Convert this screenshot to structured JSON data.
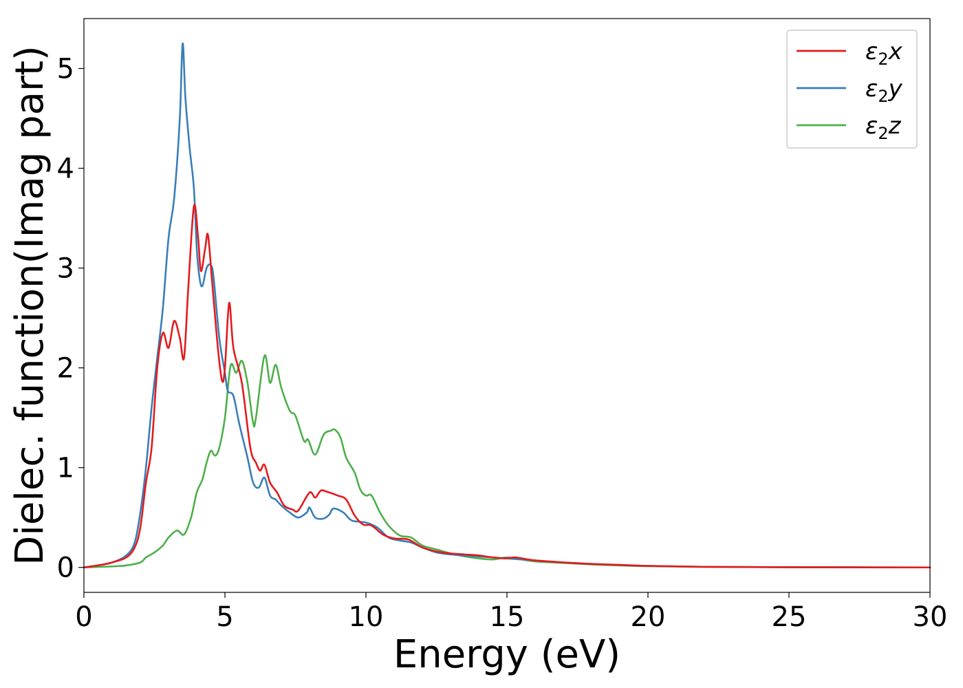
{
  "chart_data": {
    "type": "line",
    "title": "",
    "xlabel": "Energy (eV)",
    "ylabel": "Dielec. function(Imag part)",
    "xlim": [
      0,
      30
    ],
    "ylim": [
      -0.25,
      5.5
    ],
    "xticks": [
      0,
      5,
      10,
      15,
      20,
      25,
      30
    ],
    "yticks": [
      0,
      1,
      2,
      3,
      4,
      5
    ],
    "grid": false,
    "legend_position": "top-right",
    "series": [
      {
        "name": "ε2x",
        "legend_main": "ε",
        "legend_sub": "2",
        "legend_tail": "x",
        "color": "#e41a1c",
        "points": [
          [
            0,
            0
          ],
          [
            0.5,
            0.02
          ],
          [
            1.0,
            0.05
          ],
          [
            1.5,
            0.1
          ],
          [
            1.8,
            0.2
          ],
          [
            2.0,
            0.4
          ],
          [
            2.2,
            0.85
          ],
          [
            2.4,
            1.2
          ],
          [
            2.6,
            2.0
          ],
          [
            2.8,
            2.35
          ],
          [
            3.0,
            2.2
          ],
          [
            3.2,
            2.47
          ],
          [
            3.4,
            2.3
          ],
          [
            3.55,
            2.1
          ],
          [
            3.7,
            2.8
          ],
          [
            3.9,
            3.62
          ],
          [
            4.05,
            3.3
          ],
          [
            4.15,
            2.97
          ],
          [
            4.3,
            3.2
          ],
          [
            4.4,
            3.33
          ],
          [
            4.55,
            2.85
          ],
          [
            4.75,
            2.2
          ],
          [
            4.9,
            1.87
          ],
          [
            5.0,
            2.0
          ],
          [
            5.15,
            2.65
          ],
          [
            5.3,
            2.2
          ],
          [
            5.6,
            1.85
          ],
          [
            5.9,
            1.2
          ],
          [
            6.1,
            1.05
          ],
          [
            6.25,
            0.97
          ],
          [
            6.4,
            1.03
          ],
          [
            6.6,
            0.85
          ],
          [
            6.85,
            0.75
          ],
          [
            7.1,
            0.62
          ],
          [
            7.4,
            0.58
          ],
          [
            7.6,
            0.57
          ],
          [
            8.0,
            0.75
          ],
          [
            8.2,
            0.7
          ],
          [
            8.4,
            0.77
          ],
          [
            8.6,
            0.76
          ],
          [
            9.0,
            0.72
          ],
          [
            9.3,
            0.68
          ],
          [
            9.6,
            0.52
          ],
          [
            9.9,
            0.43
          ],
          [
            10.2,
            0.42
          ],
          [
            10.6,
            0.33
          ],
          [
            11.0,
            0.29
          ],
          [
            11.5,
            0.28
          ],
          [
            12.0,
            0.2
          ],
          [
            12.5,
            0.16
          ],
          [
            13.0,
            0.14
          ],
          [
            13.5,
            0.13
          ],
          [
            14.0,
            0.12
          ],
          [
            14.5,
            0.1
          ],
          [
            15.0,
            0.09
          ],
          [
            15.3,
            0.1
          ],
          [
            16.0,
            0.07
          ],
          [
            17.0,
            0.05
          ],
          [
            18.0,
            0.035
          ],
          [
            19.0,
            0.025
          ],
          [
            20.0,
            0.015
          ],
          [
            22.0,
            0.006
          ],
          [
            25.0,
            0.002
          ],
          [
            30.0,
            0.0
          ]
        ]
      },
      {
        "name": "ε2y",
        "legend_main": "ε",
        "legend_sub": "2",
        "legend_tail": "y",
        "color": "#377eb8",
        "points": [
          [
            0,
            0
          ],
          [
            0.5,
            0.02
          ],
          [
            1.0,
            0.05
          ],
          [
            1.5,
            0.12
          ],
          [
            1.8,
            0.25
          ],
          [
            2.0,
            0.55
          ],
          [
            2.2,
            1.0
          ],
          [
            2.4,
            1.6
          ],
          [
            2.6,
            2.1
          ],
          [
            2.8,
            2.6
          ],
          [
            3.0,
            3.3
          ],
          [
            3.2,
            3.7
          ],
          [
            3.4,
            4.5
          ],
          [
            3.5,
            5.25
          ],
          [
            3.6,
            4.7
          ],
          [
            3.75,
            4.2
          ],
          [
            3.9,
            3.8
          ],
          [
            4.0,
            3.2
          ],
          [
            4.1,
            2.9
          ],
          [
            4.2,
            2.82
          ],
          [
            4.35,
            3.0
          ],
          [
            4.5,
            3.03
          ],
          [
            4.6,
            2.9
          ],
          [
            4.8,
            2.3
          ],
          [
            5.0,
            1.95
          ],
          [
            5.1,
            1.77
          ],
          [
            5.3,
            1.72
          ],
          [
            5.5,
            1.45
          ],
          [
            5.8,
            1.1
          ],
          [
            6.0,
            0.85
          ],
          [
            6.2,
            0.8
          ],
          [
            6.4,
            0.9
          ],
          [
            6.6,
            0.72
          ],
          [
            6.8,
            0.68
          ],
          [
            7.0,
            0.62
          ],
          [
            7.3,
            0.55
          ],
          [
            7.6,
            0.5
          ],
          [
            7.9,
            0.55
          ],
          [
            8.0,
            0.6
          ],
          [
            8.2,
            0.5
          ],
          [
            8.5,
            0.49
          ],
          [
            8.7,
            0.53
          ],
          [
            8.85,
            0.59
          ],
          [
            9.2,
            0.55
          ],
          [
            9.5,
            0.47
          ],
          [
            10.0,
            0.45
          ],
          [
            10.4,
            0.4
          ],
          [
            10.8,
            0.3
          ],
          [
            11.2,
            0.27
          ],
          [
            11.6,
            0.25
          ],
          [
            12.0,
            0.2
          ],
          [
            12.5,
            0.15
          ],
          [
            13.0,
            0.13
          ],
          [
            14.0,
            0.11
          ],
          [
            15.0,
            0.09
          ],
          [
            16.0,
            0.07
          ],
          [
            17.0,
            0.05
          ],
          [
            18.0,
            0.035
          ],
          [
            19.0,
            0.025
          ],
          [
            20.0,
            0.015
          ],
          [
            22.0,
            0.006
          ],
          [
            25.0,
            0.002
          ],
          [
            30.0,
            0.0
          ]
        ]
      },
      {
        "name": "ε2z",
        "legend_main": "ε",
        "legend_sub": "2",
        "legend_tail": "z",
        "color": "#4daf4a",
        "points": [
          [
            0,
            0
          ],
          [
            1.0,
            0.01
          ],
          [
            1.5,
            0.02
          ],
          [
            2.0,
            0.05
          ],
          [
            2.2,
            0.1
          ],
          [
            2.5,
            0.15
          ],
          [
            2.8,
            0.22
          ],
          [
            3.0,
            0.3
          ],
          [
            3.3,
            0.37
          ],
          [
            3.55,
            0.33
          ],
          [
            3.8,
            0.5
          ],
          [
            4.0,
            0.75
          ],
          [
            4.2,
            0.88
          ],
          [
            4.35,
            1.05
          ],
          [
            4.5,
            1.17
          ],
          [
            4.65,
            1.12
          ],
          [
            4.8,
            1.2
          ],
          [
            5.0,
            1.5
          ],
          [
            5.2,
            2.02
          ],
          [
            5.4,
            1.95
          ],
          [
            5.6,
            2.07
          ],
          [
            5.8,
            1.85
          ],
          [
            6.0,
            1.45
          ],
          [
            6.1,
            1.5
          ],
          [
            6.4,
            2.12
          ],
          [
            6.6,
            1.85
          ],
          [
            6.8,
            2.03
          ],
          [
            7.0,
            1.8
          ],
          [
            7.3,
            1.57
          ],
          [
            7.5,
            1.52
          ],
          [
            7.8,
            1.27
          ],
          [
            7.95,
            1.28
          ],
          [
            8.2,
            1.13
          ],
          [
            8.5,
            1.33
          ],
          [
            8.75,
            1.37
          ],
          [
            8.9,
            1.38
          ],
          [
            9.1,
            1.3
          ],
          [
            9.3,
            1.1
          ],
          [
            9.6,
            0.95
          ],
          [
            9.8,
            0.78
          ],
          [
            10.0,
            0.72
          ],
          [
            10.2,
            0.72
          ],
          [
            10.5,
            0.55
          ],
          [
            10.8,
            0.42
          ],
          [
            11.2,
            0.32
          ],
          [
            11.6,
            0.3
          ],
          [
            12.0,
            0.22
          ],
          [
            12.5,
            0.18
          ],
          [
            13.0,
            0.14
          ],
          [
            13.5,
            0.11
          ],
          [
            14.0,
            0.09
          ],
          [
            14.5,
            0.08
          ],
          [
            15.0,
            0.1
          ],
          [
            15.5,
            0.08
          ],
          [
            16.0,
            0.06
          ],
          [
            17.0,
            0.045
          ],
          [
            18.0,
            0.03
          ],
          [
            19.0,
            0.02
          ],
          [
            20.0,
            0.012
          ],
          [
            22.0,
            0.005
          ],
          [
            25.0,
            0.002
          ],
          [
            30.0,
            0.0
          ]
        ]
      }
    ]
  }
}
